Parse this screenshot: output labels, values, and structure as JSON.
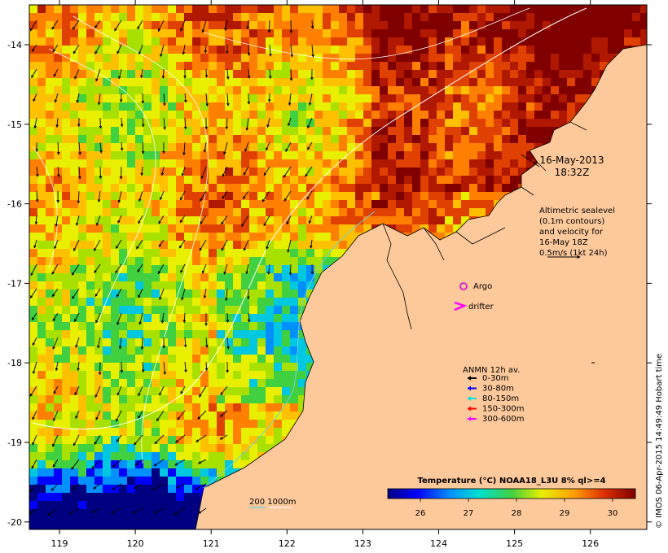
{
  "map": {
    "x_ticks": [
      "119",
      "120",
      "121",
      "122",
      "123",
      "124",
      "125",
      "126"
    ],
    "y_ticks": [
      "-14",
      "-15",
      "-16",
      "-17",
      "-18",
      "-19",
      "-20"
    ],
    "date_line1": "16-May-2013",
    "date_line2": "18:32Z",
    "altimetry_lines": [
      "Altimetric sealevel",
      "(0.1m contours)",
      "and velocity for",
      "16-May 18Z",
      "0.5m/s (1kt 24h)"
    ],
    "argo_label": "Argo",
    "drifter_label": "drifter",
    "anmn_title": "ANMN 12h av.",
    "anmn_items": [
      {
        "label": "0-30m",
        "color": "#000000"
      },
      {
        "label": "30-80m",
        "color": "#0000ff"
      },
      {
        "label": "80-150m",
        "color": "#00e0e0"
      },
      {
        "label": "150-300m",
        "color": "#ff0000"
      },
      {
        "label": "300-600m",
        "color": "#ff00ff"
      }
    ],
    "colorbar_title": "Temperature (°C) NOAA18_L3U 8% ql>=4",
    "colorbar_ticks": [
      "26",
      "27",
      "28",
      "29",
      "30"
    ],
    "contour_legend": "200  1000m",
    "credit": "© IMOS 06-Apr-2015 14:49:49 Hobart time",
    "colors": {
      "land": "#fdc89a",
      "argo": "#dd00dd",
      "drifter": "#ff00ff"
    }
  }
}
